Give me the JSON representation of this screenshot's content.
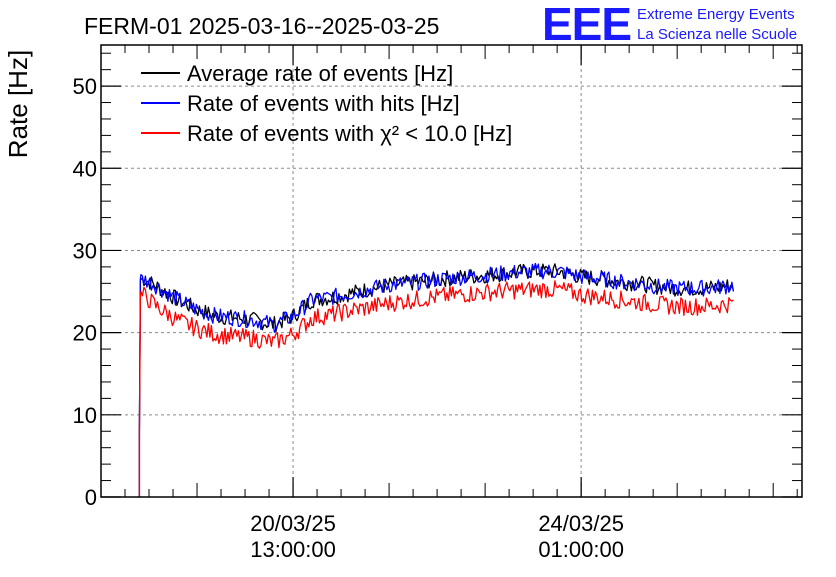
{
  "header": {
    "title": "FERM-01 2025-03-16--2025-03-25",
    "logo_text": "EEE",
    "org_line1": "Extreme Energy Events",
    "org_line2": "La Scienza nelle Scuole"
  },
  "colors": {
    "average": "#000000",
    "hits": "#0000ff",
    "chi2": "#ff0000",
    "logo": "#1a1aff",
    "grid": "#8c8c8c"
  },
  "chart_data": {
    "type": "line",
    "ylabel": "Rate [Hz]",
    "ylim": [
      0,
      55
    ],
    "yticks": [
      0,
      10,
      20,
      30,
      40,
      50
    ],
    "xlim": [
      2,
      9.3
    ],
    "xticks": [
      {
        "x": 4,
        "date": "20/03/25",
        "time": "13:00:00"
      },
      {
        "x": 7,
        "date": "24/03/25",
        "time": "01:00:00"
      }
    ],
    "grid": true,
    "legend_position": "top-left",
    "series": [
      {
        "name": "Average rate of events [Hz]",
        "color_key": "average",
        "x": [
          2.4,
          2.45,
          2.5,
          2.6,
          2.8,
          3.0,
          3.2,
          3.4,
          3.6,
          3.8,
          4.0,
          4.1,
          4.2,
          4.4,
          4.6,
          4.8,
          5.0,
          5.2,
          5.4,
          5.6,
          5.8,
          6.0,
          6.2,
          6.4,
          6.6,
          6.8,
          7.0,
          7.2,
          7.4,
          7.6,
          7.8,
          8.0,
          8.2,
          8.4,
          8.6
        ],
        "y": [
          0,
          26.5,
          26.2,
          25.5,
          24.0,
          22.8,
          22.0,
          21.8,
          21.5,
          21.0,
          22.0,
          23.0,
          24.0,
          24.3,
          24.8,
          25.3,
          25.8,
          26.0,
          26.3,
          26.6,
          26.8,
          27.0,
          27.2,
          27.4,
          27.5,
          27.4,
          26.8,
          26.6,
          26.2,
          26.0,
          25.6,
          25.4,
          25.4,
          25.5,
          25.8
        ]
      },
      {
        "name": "Rate of events with hits [Hz]",
        "color_key": "hits",
        "x": [
          2.4,
          2.45,
          2.5,
          2.6,
          2.8,
          3.0,
          3.2,
          3.4,
          3.6,
          3.8,
          4.0,
          4.1,
          4.2,
          4.4,
          4.6,
          4.8,
          5.0,
          5.2,
          5.4,
          5.6,
          5.8,
          6.0,
          6.2,
          6.4,
          6.6,
          6.8,
          7.0,
          7.2,
          7.4,
          7.6,
          7.8,
          8.0,
          8.2,
          8.4,
          8.6
        ],
        "y": [
          0,
          26.5,
          26.2,
          25.5,
          24.0,
          22.8,
          22.0,
          21.8,
          21.5,
          21.0,
          22.0,
          23.0,
          24.0,
          24.3,
          24.8,
          25.3,
          25.8,
          26.0,
          26.3,
          26.6,
          26.8,
          27.0,
          27.2,
          27.4,
          27.5,
          27.4,
          26.8,
          26.6,
          26.2,
          26.0,
          25.6,
          25.4,
          25.4,
          25.5,
          25.8
        ]
      },
      {
        "name": "Rate of events with χ² < 10.0 [Hz]",
        "color_key": "chi2",
        "x": [
          2.4,
          2.45,
          2.5,
          2.6,
          2.8,
          3.0,
          3.2,
          3.4,
          3.6,
          3.8,
          4.0,
          4.1,
          4.2,
          4.4,
          4.6,
          4.8,
          5.0,
          5.2,
          5.4,
          5.6,
          5.8,
          6.0,
          6.2,
          6.4,
          6.6,
          6.8,
          7.0,
          7.2,
          7.4,
          7.6,
          7.8,
          8.0,
          8.2,
          8.4,
          8.6
        ],
        "y": [
          0,
          24.5,
          24.0,
          23.0,
          21.5,
          20.5,
          19.8,
          19.5,
          19.3,
          18.8,
          19.8,
          20.8,
          21.8,
          22.2,
          22.7,
          23.1,
          23.6,
          23.9,
          24.2,
          24.5,
          24.7,
          24.9,
          25.1,
          25.2,
          25.3,
          25.2,
          24.6,
          24.3,
          24.0,
          23.7,
          23.4,
          23.2,
          23.2,
          23.3,
          23.6
        ]
      }
    ]
  }
}
